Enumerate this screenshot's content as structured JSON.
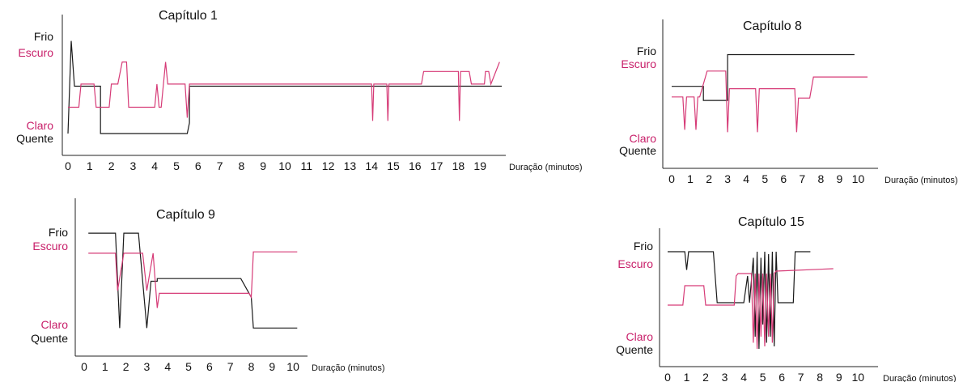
{
  "colors": {
    "temperature": "#1a1a1a",
    "light": "#d63b77",
    "label_dark": "#c8206a"
  },
  "chart_data": [
    {
      "type": "line",
      "title": "Capítulo 1",
      "xlabel": "Duração (minutos)",
      "xticks": [
        "0",
        "1",
        "2",
        "3",
        "4",
        "5",
        "6",
        "7",
        "8",
        "9",
        "10",
        "11",
        "12",
        "13",
        "14",
        "15",
        "16",
        "17",
        "18",
        "19"
      ],
      "xlim": [
        0,
        20
      ],
      "ylim": [
        0,
        1
      ],
      "y_labels": {
        "frio": "Frio",
        "escuro": "Escuro",
        "claro": "Claro",
        "quente": "Quente"
      },
      "series": [
        {
          "color": "#1a1a1a",
          "x": [
            0,
            0.15,
            0.3,
            1.5,
            1.5,
            5.5,
            5.6,
            5.6,
            20
          ],
          "y": [
            0.1,
            0.98,
            0.55,
            0.55,
            0.1,
            0.1,
            0.2,
            0.55,
            0.55
          ]
        },
        {
          "color": "#d63b77",
          "x": [
            0,
            0.5,
            0.6,
            1.2,
            1.3,
            1.9,
            2,
            2.3,
            2.5,
            2.7,
            2.8,
            4,
            4.1,
            4.2,
            4.3,
            4.5,
            4.6,
            4.8,
            5,
            5.4,
            5.5,
            5.6,
            14,
            14.05,
            14.1,
            14.7,
            14.75,
            14.8,
            16.3,
            16.4,
            18,
            18.05,
            18.1,
            18.5,
            18.6,
            19.2,
            19.25,
            19.4,
            19.5,
            19.9
          ],
          "y": [
            0.35,
            0.35,
            0.57,
            0.57,
            0.35,
            0.35,
            0.57,
            0.57,
            0.78,
            0.78,
            0.35,
            0.35,
            0.57,
            0.35,
            0.35,
            0.78,
            0.57,
            0.57,
            0.57,
            0.57,
            0.25,
            0.57,
            0.57,
            0.22,
            0.57,
            0.57,
            0.22,
            0.57,
            0.57,
            0.69,
            0.69,
            0.22,
            0.69,
            0.69,
            0.57,
            0.57,
            0.69,
            0.69,
            0.57,
            0.78
          ]
        }
      ]
    },
    {
      "type": "line",
      "title": "Capítulo 8",
      "xlabel": "Duração (minutos)",
      "xticks": [
        "0",
        "1",
        "2",
        "3",
        "4",
        "5",
        "6",
        "7",
        "8",
        "9",
        "10"
      ],
      "xlim": [
        0,
        10.5
      ],
      "ylim": [
        0,
        1
      ],
      "y_labels": {
        "frio": "Frio",
        "escuro": "Escuro",
        "claro": "Claro",
        "quente": "Quente"
      },
      "series": [
        {
          "color": "#1a1a1a",
          "x": [
            0,
            1.7,
            1.7,
            3,
            3,
            9.8
          ],
          "y": [
            0.54,
            0.54,
            0.42,
            0.42,
            0.81,
            0.81
          ]
        },
        {
          "color": "#d63b77",
          "x": [
            0,
            0.6,
            0.7,
            0.8,
            0.9,
            1.2,
            1.3,
            1.4,
            1.5,
            1.9,
            2.0,
            2.9,
            3.0,
            3.1,
            4.5,
            4.6,
            4.7,
            6.6,
            6.7,
            6.8,
            7.4,
            7.6,
            10.5
          ],
          "y": [
            0.45,
            0.45,
            0.17,
            0.45,
            0.45,
            0.45,
            0.17,
            0.45,
            0.45,
            0.67,
            0.67,
            0.67,
            0.15,
            0.52,
            0.52,
            0.15,
            0.52,
            0.52,
            0.15,
            0.44,
            0.44,
            0.62,
            0.62
          ]
        }
      ]
    },
    {
      "type": "line",
      "title": "Capítulo 9",
      "xlabel": "Duração (minutos)",
      "xticks": [
        "0",
        "1",
        "2",
        "3",
        "4",
        "5",
        "6",
        "7",
        "8",
        "9",
        "10"
      ],
      "xlim": [
        0,
        10.5
      ],
      "ylim": [
        0,
        1
      ],
      "y_labels": {
        "frio": "Frio",
        "escuro": "Escuro",
        "claro": "Claro",
        "quente": "Quente"
      },
      "series": [
        {
          "color": "#1a1a1a",
          "x": [
            0.2,
            1.5,
            1.7,
            1.9,
            2.6,
            3.0,
            3.2,
            3.4,
            3.5,
            3.5,
            7.5,
            8.0,
            8.1,
            10.2
          ],
          "y": [
            0.86,
            0.86,
            0.15,
            0.86,
            0.86,
            0.15,
            0.5,
            0.5,
            0.5,
            0.52,
            0.52,
            0.38,
            0.15,
            0.15
          ]
        },
        {
          "color": "#d63b77",
          "x": [
            0.2,
            1.5,
            1.6,
            1.9,
            2.8,
            3.0,
            3.3,
            3.5,
            3.6,
            3.7,
            7.9,
            8.0,
            8.1,
            10.2
          ],
          "y": [
            0.71,
            0.71,
            0.43,
            0.71,
            0.71,
            0.43,
            0.71,
            0.3,
            0.41,
            0.41,
            0.41,
            0.38,
            0.72,
            0.72
          ]
        }
      ]
    },
    {
      "type": "line",
      "title": "Capítulo 15",
      "xlabel": "Duração (minutos)",
      "xticks": [
        "0",
        "1",
        "2",
        "3",
        "4",
        "5",
        "6",
        "7",
        "8",
        "9",
        "10"
      ],
      "xlim": [
        0,
        10.5
      ],
      "ylim": [
        0,
        1
      ],
      "y_labels": {
        "frio": "Frio",
        "escuro": "Escuro",
        "claro": "Claro",
        "quente": "Quente"
      },
      "series": [
        {
          "color": "#1a1a1a",
          "x": [
            0,
            0.9,
            1.0,
            1.1,
            2.4,
            2.6,
            4.0,
            4.2,
            4.3,
            4.5,
            4.6,
            4.7,
            4.8,
            4.9,
            5.0,
            5.1,
            5.2,
            5.3,
            5.4,
            5.5,
            5.6,
            5.7,
            5.8,
            6.6,
            6.7,
            7.5
          ],
          "y": [
            0.9,
            0.9,
            0.75,
            0.9,
            0.9,
            0.48,
            0.48,
            0.7,
            0.48,
            0.85,
            0.2,
            0.9,
            0.1,
            0.85,
            0.3,
            0.9,
            0.15,
            0.88,
            0.2,
            0.9,
            0.12,
            0.9,
            0.48,
            0.48,
            0.9,
            0.9
          ]
        },
        {
          "color": "#d63b77",
          "x": [
            0,
            0.8,
            0.9,
            1.9,
            2.0,
            3.0,
            3.5,
            3.6,
            3.7,
            4.4,
            4.5,
            4.6,
            4.7,
            4.8,
            4.9,
            5.0,
            5.1,
            5.2,
            5.3,
            5.4,
            5.5,
            5.6,
            5.7,
            8.7
          ],
          "y": [
            0.46,
            0.46,
            0.62,
            0.62,
            0.46,
            0.46,
            0.46,
            0.7,
            0.72,
            0.72,
            0.15,
            0.72,
            0.1,
            0.72,
            0.2,
            0.72,
            0.12,
            0.72,
            0.2,
            0.72,
            0.15,
            0.72,
            0.74,
            0.76
          ]
        }
      ]
    }
  ]
}
